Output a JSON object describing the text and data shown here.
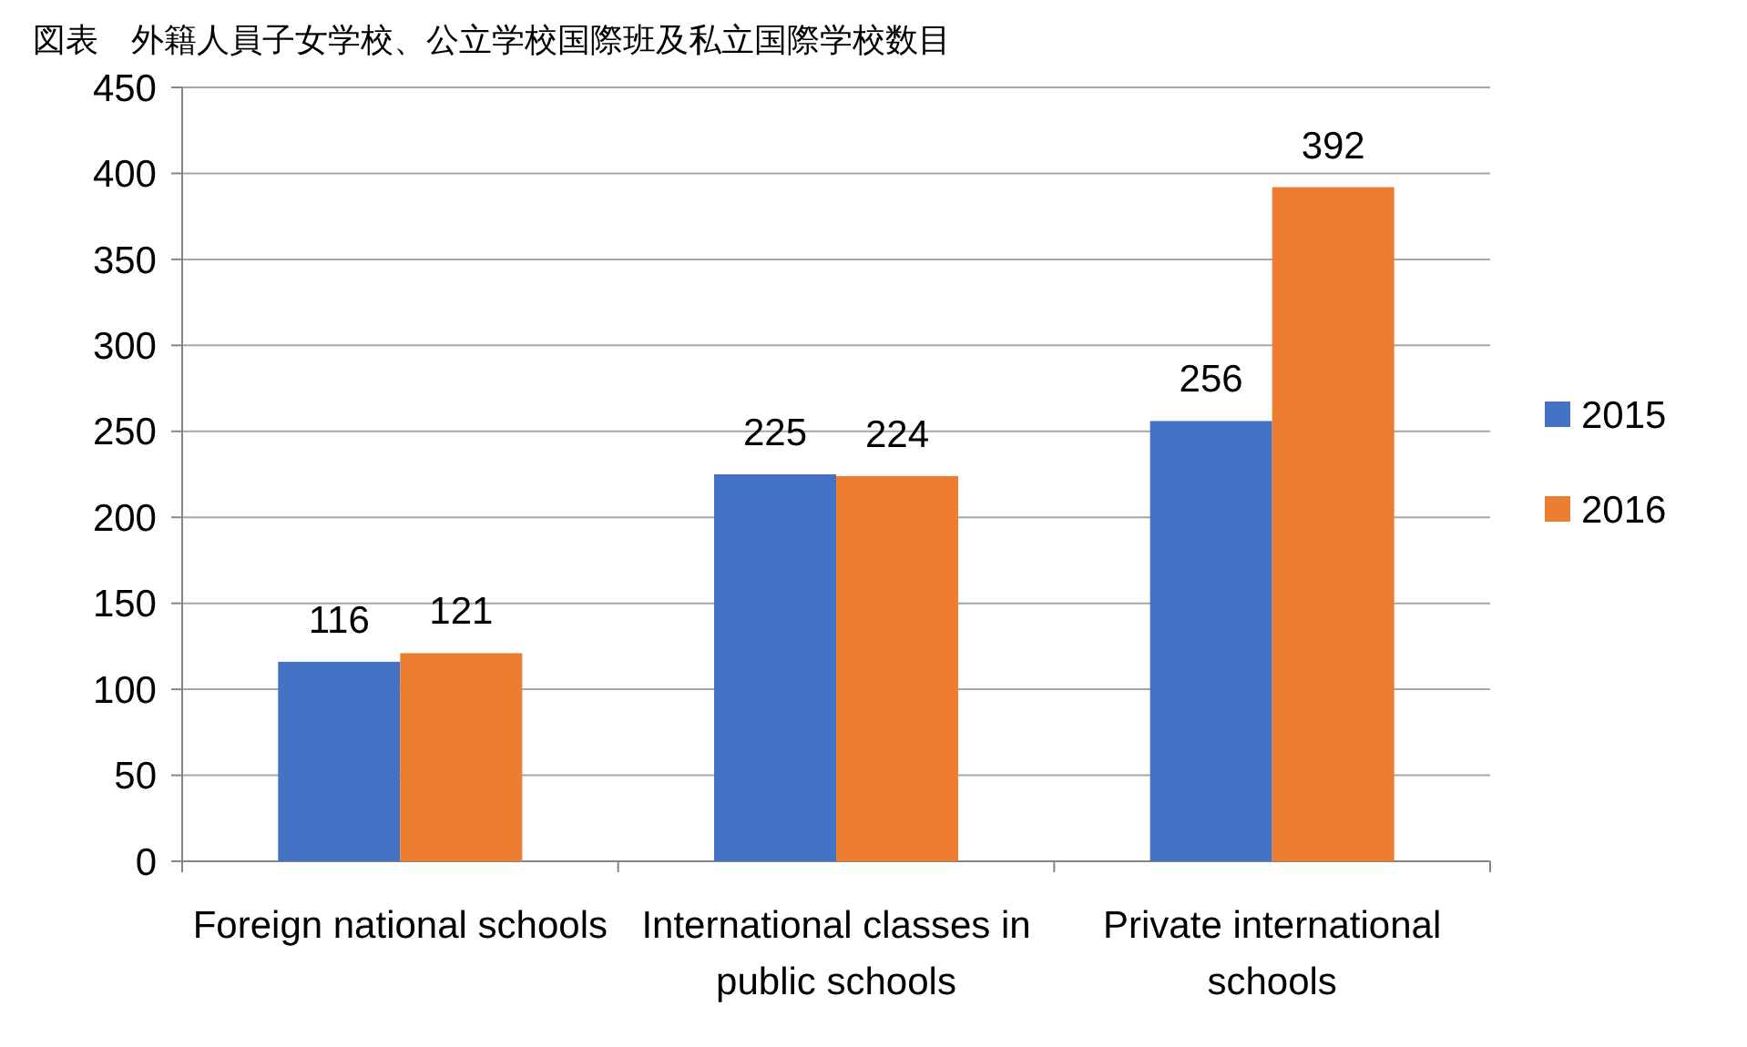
{
  "chart_data": {
    "type": "bar",
    "title": "図表　外籍人員子女学校、公立学校国際班及私立国際学校数目",
    "categories": [
      "Foreign national schools",
      "International classes in public schools",
      "Private international schools"
    ],
    "series": [
      {
        "name": "2015",
        "color": "#4472c4",
        "values": [
          116,
          225,
          256
        ]
      },
      {
        "name": "2016",
        "color": "#ed7d31",
        "values": [
          121,
          224,
          392
        ]
      }
    ],
    "ylim": [
      0,
      450
    ],
    "yticks": [
      0,
      50,
      100,
      150,
      200,
      250,
      300,
      350,
      400,
      450
    ],
    "grid": "y",
    "legend": "right",
    "data_labels": true
  }
}
